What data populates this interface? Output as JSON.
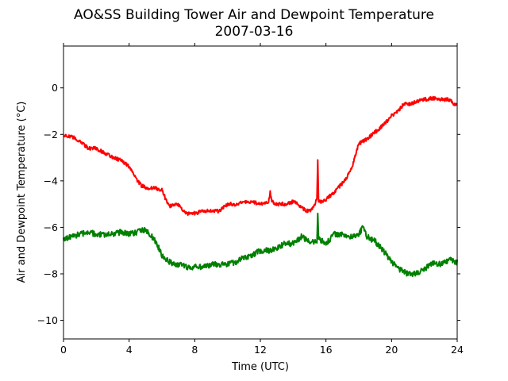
{
  "chart_data": {
    "type": "line",
    "title": "AO&SS Building Tower Air and Dewpoint Temperature",
    "subtitle": "2007-03-16",
    "xlabel": "Time (UTC)",
    "ylabel": "Air and Dewpoint Temperature (°C)",
    "xlim": [
      0,
      24
    ],
    "ylim": [
      -10.8,
      1.8
    ],
    "xticks": [
      0,
      4,
      8,
      12,
      16,
      20,
      24
    ],
    "yticks": [
      0,
      -2,
      -4,
      -6,
      -8,
      -10
    ],
    "xtick_labels": [
      "0",
      "4",
      "8",
      "12",
      "16",
      "20",
      "24"
    ],
    "ytick_labels": [
      "0",
      "−2",
      "−4",
      "−6",
      "−8",
      "−10"
    ],
    "grid": false,
    "legend": "none",
    "series": [
      {
        "color": "#ff0000",
        "x": [
          0,
          0.5,
          1,
          1.5,
          2,
          2.5,
          3,
          3.5,
          4,
          4.25,
          4.5,
          4.75,
          5,
          5.5,
          6,
          6.3,
          6.5,
          6.75,
          7,
          7.25,
          7.5,
          8,
          8.5,
          9,
          9.5,
          10,
          10.5,
          11,
          11.5,
          12,
          12.5,
          12.6,
          12.7,
          13,
          13.5,
          14,
          14.5,
          14.75,
          15,
          15.25,
          15.45,
          15.5,
          15.55,
          15.75,
          16,
          16.5,
          17,
          17.5,
          17.75,
          18,
          18.5,
          19,
          19.5,
          20,
          20.5,
          20.75,
          21,
          21.5,
          22,
          22.5,
          23,
          23.5,
          24
        ],
        "y": [
          -2.0,
          -2.1,
          -2.3,
          -2.6,
          -2.6,
          -2.8,
          -3.0,
          -3.1,
          -3.4,
          -3.7,
          -4.0,
          -4.2,
          -4.3,
          -4.3,
          -4.4,
          -4.9,
          -5.1,
          -5.0,
          -5.0,
          -5.3,
          -5.4,
          -5.4,
          -5.3,
          -5.3,
          -5.3,
          -5.0,
          -5.0,
          -4.9,
          -4.9,
          -5.0,
          -4.9,
          -4.5,
          -4.9,
          -5.0,
          -5.0,
          -4.9,
          -5.1,
          -5.3,
          -5.3,
          -5.1,
          -4.8,
          -3.1,
          -4.9,
          -4.9,
          -4.8,
          -4.5,
          -4.1,
          -3.6,
          -3.0,
          -2.4,
          -2.2,
          -1.9,
          -1.6,
          -1.2,
          -0.9,
          -0.7,
          -0.7,
          -0.6,
          -0.5,
          -0.45,
          -0.5,
          -0.5,
          -0.8
        ]
      },
      {
        "color": "#008000",
        "x": [
          0,
          0.5,
          1,
          1.5,
          2,
          2.5,
          3,
          3.5,
          4,
          4.5,
          5,
          5.5,
          5.75,
          6,
          6.5,
          7,
          7.5,
          8,
          8.5,
          9,
          9.5,
          10,
          10.5,
          11,
          11.5,
          12,
          12.5,
          13,
          13.5,
          14,
          14.5,
          15,
          15.45,
          15.5,
          15.55,
          16,
          16.5,
          17,
          17.5,
          18,
          18.25,
          18.5,
          19,
          19.5,
          20,
          20.5,
          21,
          21.5,
          22,
          22.5,
          23,
          23.5,
          24
        ],
        "y": [
          -6.5,
          -6.4,
          -6.3,
          -6.2,
          -6.3,
          -6.3,
          -6.3,
          -6.2,
          -6.3,
          -6.2,
          -6.1,
          -6.5,
          -6.8,
          -7.2,
          -7.5,
          -7.6,
          -7.7,
          -7.7,
          -7.7,
          -7.6,
          -7.6,
          -7.6,
          -7.5,
          -7.3,
          -7.2,
          -7.0,
          -7.0,
          -6.9,
          -6.7,
          -6.7,
          -6.4,
          -6.6,
          -6.6,
          -5.4,
          -6.5,
          -6.7,
          -6.3,
          -6.3,
          -6.4,
          -6.3,
          -6.0,
          -6.4,
          -6.6,
          -7.0,
          -7.5,
          -7.8,
          -8.0,
          -8.0,
          -7.8,
          -7.5,
          -7.6,
          -7.4,
          -7.5
        ]
      }
    ]
  }
}
